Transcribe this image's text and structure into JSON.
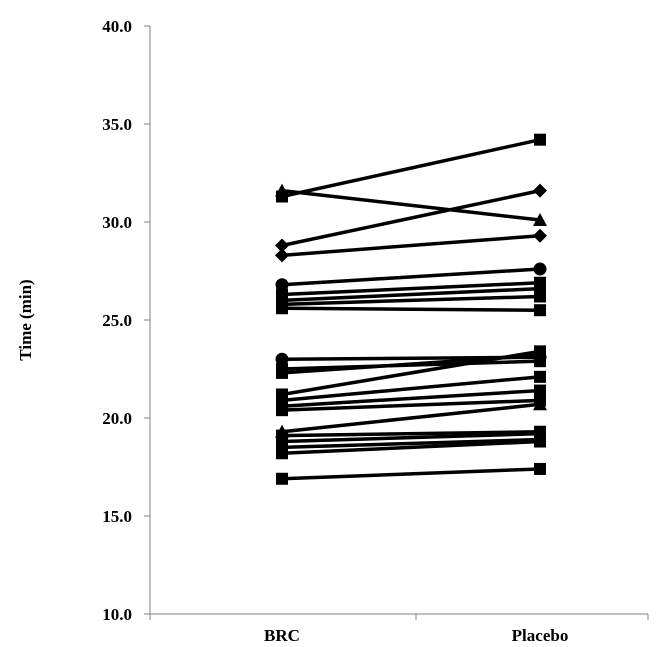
{
  "chart_data": {
    "type": "line",
    "title": "",
    "xlabel": "",
    "ylabel": "Time (min)",
    "categories": [
      "BRC",
      "Placebo"
    ],
    "ylim": [
      10,
      40
    ],
    "yticks": [
      "10.0",
      "15.0",
      "20.0",
      "25.0",
      "30.0",
      "35.0",
      "40.0"
    ],
    "grid": false,
    "legend": "none",
    "line_color": "#000000",
    "series": [
      {
        "marker": "triangle",
        "values": [
          31.6,
          30.1
        ]
      },
      {
        "marker": "square",
        "values": [
          31.3,
          34.2
        ]
      },
      {
        "marker": "diamond",
        "values": [
          28.8,
          31.6
        ]
      },
      {
        "marker": "diamond",
        "values": [
          28.3,
          29.3
        ]
      },
      {
        "marker": "circle",
        "values": [
          26.8,
          27.6
        ]
      },
      {
        "marker": "square",
        "values": [
          26.3,
          26.9
        ]
      },
      {
        "marker": "square",
        "values": [
          26.0,
          26.6
        ]
      },
      {
        "marker": "square",
        "values": [
          25.8,
          26.2
        ]
      },
      {
        "marker": "square",
        "values": [
          25.6,
          25.5
        ]
      },
      {
        "marker": "circle",
        "values": [
          23.0,
          23.1
        ]
      },
      {
        "marker": "square",
        "values": [
          22.5,
          22.9
        ]
      },
      {
        "marker": "square",
        "values": [
          22.3,
          23.2
        ]
      },
      {
        "marker": "square",
        "values": [
          21.2,
          23.4
        ]
      },
      {
        "marker": "square",
        "values": [
          20.9,
          22.1
        ]
      },
      {
        "marker": "square",
        "values": [
          20.6,
          21.4
        ]
      },
      {
        "marker": "square",
        "values": [
          20.4,
          20.9
        ]
      },
      {
        "marker": "triangle",
        "values": [
          19.3,
          20.7
        ]
      },
      {
        "marker": "square",
        "values": [
          19.1,
          19.3
        ]
      },
      {
        "marker": "square",
        "values": [
          18.8,
          19.2
        ]
      },
      {
        "marker": "square",
        "values": [
          18.5,
          18.9
        ]
      },
      {
        "marker": "square",
        "values": [
          18.2,
          18.8
        ]
      },
      {
        "marker": "square",
        "values": [
          16.9,
          17.4
        ]
      }
    ]
  }
}
